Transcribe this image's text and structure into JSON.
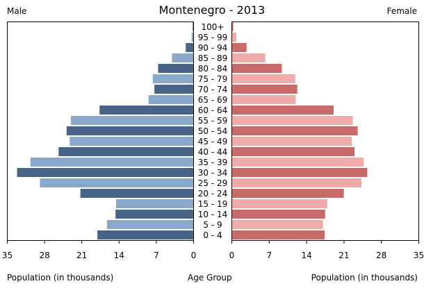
{
  "title": "Montenegro - 2013",
  "male_label": "Male",
  "female_label": "Female",
  "xlabel_left": "Population (in thousands)",
  "xlabel_center": "Age Group",
  "xlabel_right": "Population (in thousands)",
  "colors": {
    "male_dark": "#476487",
    "male_light": "#88a8cc",
    "female_dark": "#c96a6a",
    "female_light": "#f1aaaa"
  },
  "chart_data": {
    "type": "bar",
    "orientation": "horizontal",
    "title": "Montenegro - 2013",
    "categories": [
      "100+",
      "95 - 99",
      "90 - 94",
      "85 - 89",
      "80 - 84",
      "75 - 79",
      "70 - 74",
      "65 - 69",
      "60 - 64",
      "55 - 59",
      "50 - 54",
      "45 - 49",
      "40 - 44",
      "35 - 39",
      "30 - 34",
      "25 - 29",
      "20 - 24",
      "15 - 19",
      "10 - 14",
      "5 - 9",
      "0 - 4"
    ],
    "series": [
      {
        "name": "Male",
        "values": [
          0.1,
          0.3,
          1.4,
          4.0,
          6.6,
          7.6,
          7.3,
          8.4,
          17.6,
          23.0,
          23.8,
          23.2,
          25.3,
          30.6,
          33.1,
          28.8,
          21.2,
          14.5,
          14.6,
          16.2,
          18.0
        ]
      },
      {
        "name": "Female",
        "values": [
          0.2,
          0.8,
          2.7,
          6.2,
          9.3,
          11.8,
          12.2,
          11.9,
          19.0,
          22.6,
          23.5,
          22.4,
          22.9,
          24.6,
          25.3,
          24.2,
          20.9,
          17.8,
          17.4,
          17.0,
          17.3
        ]
      }
    ],
    "xlim": [
      0,
      35
    ],
    "xticks": [
      35,
      28,
      21,
      14,
      7,
      0
    ],
    "xticks_right": [
      0,
      7,
      14,
      21,
      28,
      35
    ],
    "xlabel": "Population (in thousands)",
    "center_label": "Age Group",
    "grid": false
  }
}
